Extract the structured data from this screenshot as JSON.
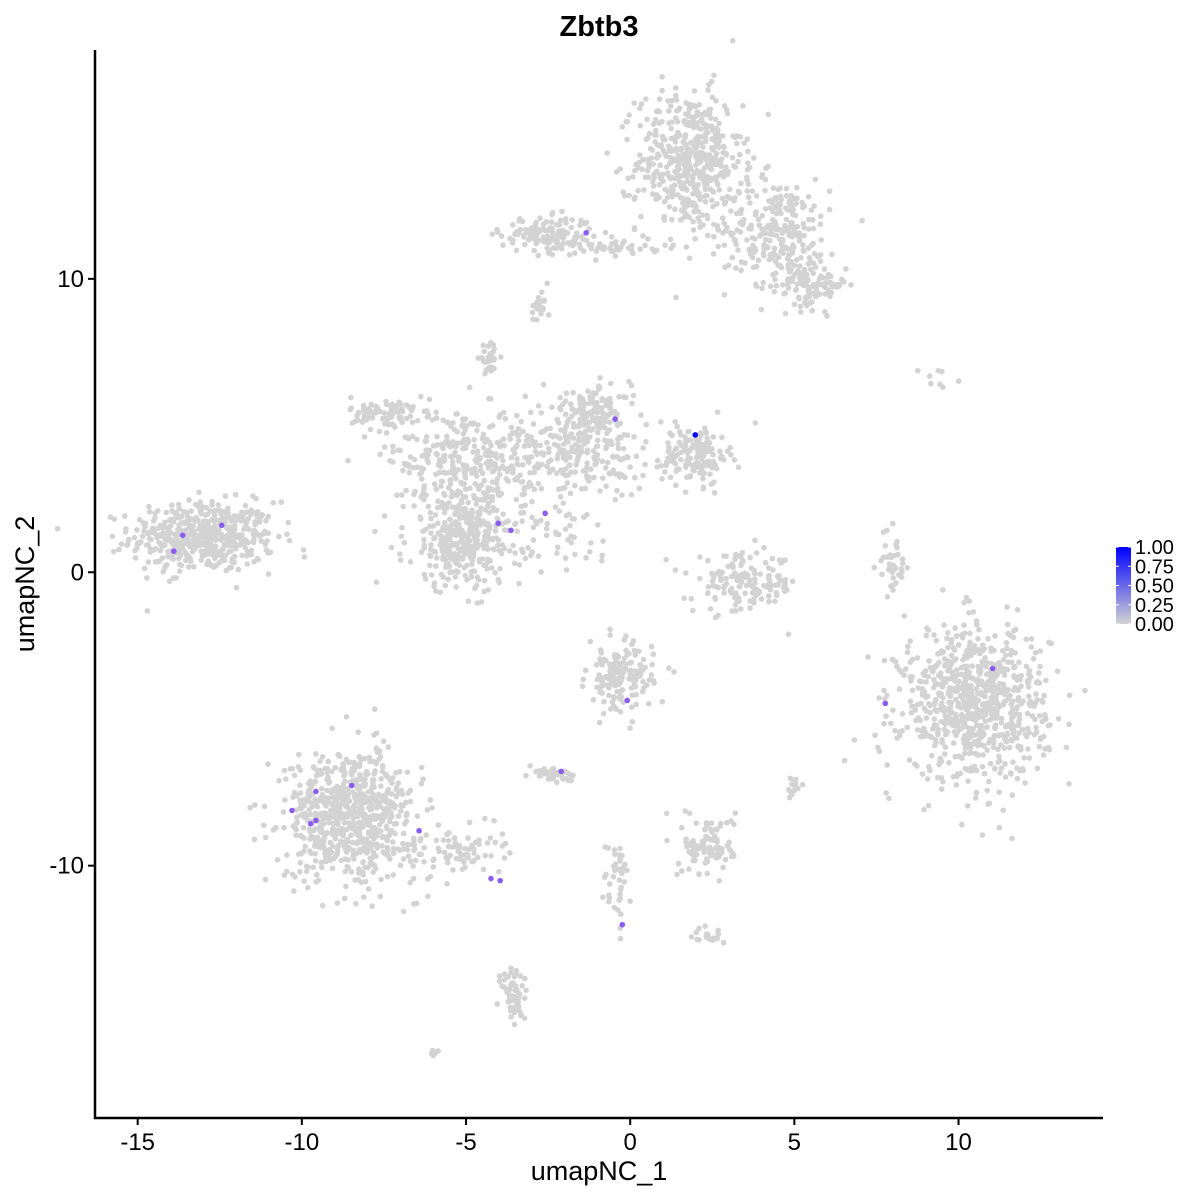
{
  "chart_data": {
    "type": "scatter",
    "title": "Zbtb3",
    "xlabel": "umapNC_1",
    "ylabel": "umapNC_2",
    "xlim": [
      -16.3,
      14.4
    ],
    "ylim": [
      -18.6,
      17.8
    ],
    "xticks": [
      -15,
      -10,
      -5,
      0,
      5,
      10
    ],
    "xtick_labels": [
      "-15",
      "-10",
      "-5",
      "0",
      "5",
      "10"
    ],
    "yticks": [
      -10,
      0,
      10
    ],
    "ytick_labels": [
      "-10",
      "0",
      "10"
    ],
    "grid": false,
    "legend": {
      "placement": "right",
      "type": "colorbar",
      "ticks": [
        1.0,
        0.75,
        0.5,
        0.25,
        0.0
      ],
      "tick_labels": [
        "1.00",
        "0.75",
        "0.50",
        "0.25",
        "0.00"
      ],
      "low_color": "#d3d3d3",
      "high_color": "#0000ff"
    },
    "background_clusters": [
      {
        "cx": -13.0,
        "cy": 1.2,
        "sx": 1.1,
        "sy": 0.6,
        "n": 500
      },
      {
        "cx": 1.8,
        "cy": 14.0,
        "sx": 0.8,
        "sy": 1.2,
        "n": 500
      },
      {
        "cx": 4.5,
        "cy": 11.6,
        "sx": 0.8,
        "sy": 0.9,
        "n": 250
      },
      {
        "cx": 5.6,
        "cy": 9.8,
        "sx": 0.5,
        "sy": 0.4,
        "n": 100
      },
      {
        "cx": -2.5,
        "cy": 11.5,
        "sx": 0.7,
        "sy": 0.3,
        "n": 150
      },
      {
        "cx": -0.3,
        "cy": 11.1,
        "sx": 0.7,
        "sy": 0.15,
        "n": 40
      },
      {
        "cx": -5.0,
        "cy": 4.0,
        "sx": 1.2,
        "sy": 0.8,
        "n": 300
      },
      {
        "cx": -7.5,
        "cy": 5.4,
        "sx": 0.5,
        "sy": 0.3,
        "n": 80
      },
      {
        "cx": -1.5,
        "cy": 4.2,
        "sx": 1.0,
        "sy": 0.8,
        "n": 250
      },
      {
        "cx": 2.0,
        "cy": 4.0,
        "sx": 0.5,
        "sy": 0.5,
        "n": 150
      },
      {
        "cx": -5.0,
        "cy": 1.2,
        "sx": 0.9,
        "sy": 0.9,
        "n": 400
      },
      {
        "cx": -1.0,
        "cy": 5.6,
        "sx": 0.5,
        "sy": 0.4,
        "n": 80
      },
      {
        "cx": -4.3,
        "cy": 7.3,
        "sx": 0.15,
        "sy": 0.2,
        "n": 30
      },
      {
        "cx": -2.8,
        "cy": 9.0,
        "sx": 0.15,
        "sy": 0.3,
        "n": 20
      },
      {
        "cx": -1.8,
        "cy": 1.2,
        "sx": 0.6,
        "sy": 0.4,
        "n": 30
      },
      {
        "cx": 3.5,
        "cy": -0.4,
        "sx": 0.8,
        "sy": 0.5,
        "n": 150
      },
      {
        "cx": 10.5,
        "cy": -4.5,
        "sx": 1.1,
        "sy": 1.3,
        "n": 800
      },
      {
        "cx": -0.3,
        "cy": -3.6,
        "sx": 0.5,
        "sy": 0.6,
        "n": 150
      },
      {
        "cx": -8.5,
        "cy": -8.3,
        "sx": 1.0,
        "sy": 1.1,
        "n": 700
      },
      {
        "cx": -5.5,
        "cy": -9.5,
        "sx": 0.8,
        "sy": 0.4,
        "n": 80
      },
      {
        "cx": -2.3,
        "cy": -6.9,
        "sx": 0.3,
        "sy": 0.15,
        "n": 40
      },
      {
        "cx": 2.4,
        "cy": -9.3,
        "sx": 0.4,
        "sy": 0.5,
        "n": 100
      },
      {
        "cx": -3.5,
        "cy": -14.4,
        "sx": 0.2,
        "sy": 0.6,
        "n": 60
      },
      {
        "cx": -0.4,
        "cy": -10.6,
        "sx": 0.2,
        "sy": 0.8,
        "n": 40
      },
      {
        "cx": 8.0,
        "cy": 0.3,
        "sx": 0.2,
        "sy": 0.6,
        "n": 40
      },
      {
        "cx": 2.3,
        "cy": -12.4,
        "sx": 0.3,
        "sy": 0.15,
        "n": 20
      },
      {
        "cx": 5.0,
        "cy": -7.3,
        "sx": 0.1,
        "sy": 0.2,
        "n": 15
      },
      {
        "cx": 9.5,
        "cy": 6.7,
        "sx": 0.3,
        "sy": 0.2,
        "n": 8
      },
      {
        "cx": -6.0,
        "cy": -16.4,
        "sx": 0.1,
        "sy": 0.1,
        "n": 5
      }
    ],
    "expressing_points": [
      {
        "x": -1.34,
        "y": 11.57,
        "value": 0.6
      },
      {
        "x": -0.46,
        "y": 5.22,
        "value": 0.6
      },
      {
        "x": 1.98,
        "y": 4.68,
        "value": 1.0
      },
      {
        "x": -2.59,
        "y": 2.01,
        "value": 0.6
      },
      {
        "x": -4.02,
        "y": 1.67,
        "value": 0.6
      },
      {
        "x": -3.63,
        "y": 1.43,
        "value": 0.6
      },
      {
        "x": -13.63,
        "y": 1.26,
        "value": 0.6
      },
      {
        "x": -12.44,
        "y": 1.6,
        "value": 0.6
      },
      {
        "x": -13.9,
        "y": 0.72,
        "value": 0.6
      },
      {
        "x": 11.04,
        "y": -3.28,
        "value": 0.6
      },
      {
        "x": 7.77,
        "y": -4.47,
        "value": 0.6
      },
      {
        "x": -0.09,
        "y": -4.37,
        "value": 0.6
      },
      {
        "x": -2.1,
        "y": -6.79,
        "value": 0.6
      },
      {
        "x": -8.48,
        "y": -7.27,
        "value": 0.6
      },
      {
        "x": -9.57,
        "y": -7.47,
        "value": 0.6
      },
      {
        "x": -10.3,
        "y": -8.12,
        "value": 0.6
      },
      {
        "x": -9.57,
        "y": -8.46,
        "value": 0.6
      },
      {
        "x": -9.73,
        "y": -8.57,
        "value": 0.6
      },
      {
        "x": -6.43,
        "y": -8.81,
        "value": 0.6
      },
      {
        "x": -4.24,
        "y": -10.44,
        "value": 0.6
      },
      {
        "x": -3.96,
        "y": -10.51,
        "value": 0.6
      },
      {
        "x": -0.24,
        "y": -12.01,
        "value": 0.6
      }
    ]
  }
}
